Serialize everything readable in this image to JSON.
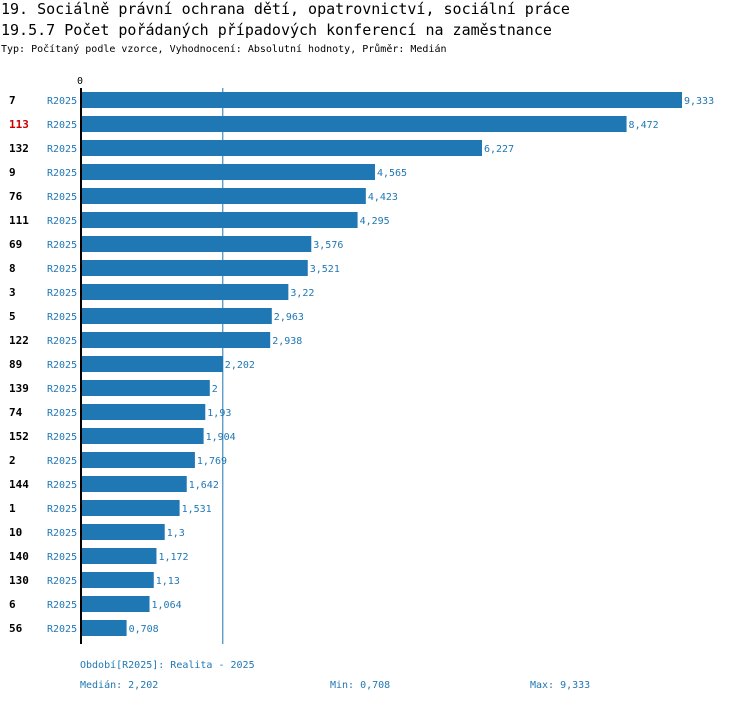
{
  "header": {
    "title1": "19. Sociálně právní ochrana dětí, opatrovnictví, sociální práce",
    "title2": "19.5.7 Počet pořádaných případových konferencí na zaměstnance",
    "subtitle": "Typ: Počítaný podle vzorce, Vyhodnocení: Absolutní hodnoty, Průměr: Medián"
  },
  "colors": {
    "bar": "#1f77b4",
    "highlight": "#cc0000",
    "text": "#000000",
    "value": "#1f77b4"
  },
  "chart_data": {
    "type": "bar",
    "orientation": "horizontal",
    "axis_tick_label": "0",
    "xlim": [
      0,
      9.333
    ],
    "highlight_category": "113",
    "median": 2.202,
    "categories": [
      "7",
      "113",
      "132",
      "9",
      "76",
      "111",
      "69",
      "8",
      "3",
      "5",
      "122",
      "89",
      "139",
      "74",
      "152",
      "2",
      "144",
      "1",
      "10",
      "140",
      "130",
      "6",
      "56"
    ],
    "period_labels": [
      "R2025",
      "R2025",
      "R2025",
      "R2025",
      "R2025",
      "R2025",
      "R2025",
      "R2025",
      "R2025",
      "R2025",
      "R2025",
      "R2025",
      "R2025",
      "R2025",
      "R2025",
      "R2025",
      "R2025",
      "R2025",
      "R2025",
      "R2025",
      "R2025",
      "R2025",
      "R2025"
    ],
    "values": [
      9.333,
      8.472,
      6.227,
      4.565,
      4.423,
      4.295,
      3.576,
      3.521,
      3.22,
      2.963,
      2.938,
      2.202,
      2,
      1.93,
      1.904,
      1.769,
      1.642,
      1.531,
      1.3,
      1.172,
      1.13,
      1.064,
      0.708
    ],
    "value_labels": [
      "9,333",
      "8,472",
      "6,227",
      "4,565",
      "4,423",
      "4,295",
      "3,576",
      "3,521",
      "3,22",
      "2,963",
      "2,938",
      "2,202",
      "2",
      "1,93",
      "1,904",
      "1,769",
      "1,642",
      "1,531",
      "1,3",
      "1,172",
      "1,13",
      "1,064",
      "0,708"
    ]
  },
  "footer": {
    "period": "Období[R2025]: Realita - 2025",
    "median": "Medián: 2,202",
    "min": "Min: 0,708",
    "max": "Max: 9,333"
  }
}
